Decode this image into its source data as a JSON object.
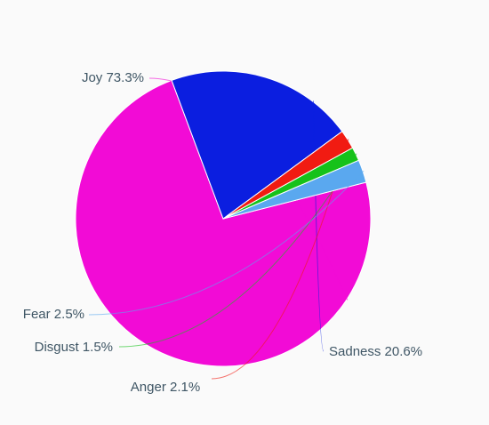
{
  "chart_data": {
    "type": "pie",
    "slices": [
      {
        "label": "Joy 73.3%",
        "name": "Joy",
        "value": 73.3,
        "color": "#f20bd6"
      },
      {
        "label": "Sadness 20.6%",
        "name": "Sadness",
        "value": 20.6,
        "color": "#0b1ee0"
      },
      {
        "label": "Anger 2.1%",
        "name": "Anger",
        "value": 2.1,
        "color": "#f11b12"
      },
      {
        "label": "Disgust 1.5%",
        "name": "Disgust",
        "value": 1.5,
        "color": "#16c21a"
      },
      {
        "label": "Fear 2.5%",
        "name": "Fear",
        "value": 2.5,
        "color": "#5aa8ef"
      }
    ]
  }
}
